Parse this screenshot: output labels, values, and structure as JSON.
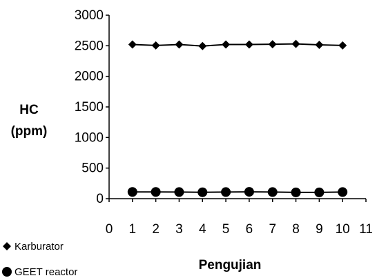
{
  "chart_data": {
    "type": "line",
    "xlabel": "Pengujian",
    "ylabel": [
      "HC",
      "(ppm)"
    ],
    "xlim": [
      0,
      11
    ],
    "ylim": [
      0,
      3000
    ],
    "xticks": [
      0,
      1,
      2,
      3,
      4,
      5,
      6,
      7,
      8,
      9,
      10,
      11
    ],
    "yticks": [
      0,
      500,
      1000,
      1500,
      2000,
      2500,
      3000
    ],
    "grid": false,
    "legend_position": "bottom-left",
    "x": [
      1,
      2,
      3,
      4,
      5,
      6,
      7,
      8,
      9,
      10
    ],
    "series": [
      {
        "name": "Karburator",
        "marker": "diamond",
        "color": "#000000",
        "values": [
          2520,
          2505,
          2520,
          2495,
          2520,
          2520,
          2525,
          2530,
          2515,
          2505
        ]
      },
      {
        "name": "GEET reactor",
        "marker": "circle",
        "color": "#000000",
        "values": [
          110,
          110,
          108,
          105,
          108,
          112,
          108,
          103,
          103,
          108
        ]
      }
    ]
  }
}
